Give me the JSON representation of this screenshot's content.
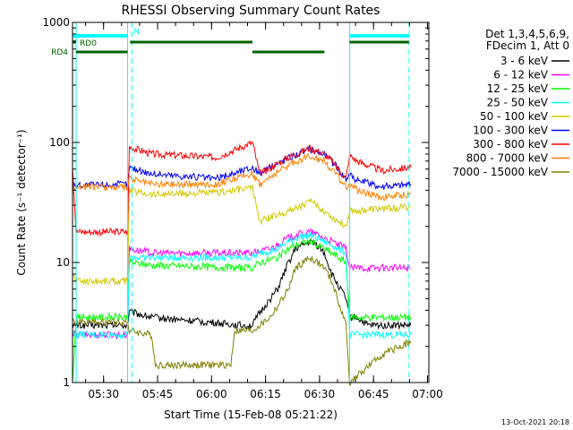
{
  "chart_data": {
    "type": "line",
    "title": "RHESSI Observing Summary Count Rates",
    "ylabel": "Count Rate (s⁻¹ detector⁻¹)",
    "xlabel": "Start Time (15-Feb-08 05:21:22)",
    "y_scale": "log",
    "ylim": [
      1,
      1000
    ],
    "y_ticks": [
      1,
      10,
      100,
      1000
    ],
    "x_range_minutes": [
      0,
      99
    ],
    "x_tick_labels": [
      "05:30",
      "05:45",
      "06:00",
      "06:15",
      "06:30",
      "06:45",
      "07:00"
    ],
    "x_tick_minutes": [
      8.63,
      23.63,
      38.63,
      53.63,
      68.63,
      83.63,
      98.63
    ],
    "grid": false,
    "legend_position": "right",
    "legend_header": [
      "Det 1,3,4,5,6,9,",
      "FDecim 1, Att 0"
    ],
    "series": [
      {
        "name": "3 - 6 keV",
        "color": "#000000",
        "x": [
          0,
          1,
          15.3,
          15.8,
          22,
          47,
          50,
          52,
          57,
          60,
          62,
          66,
          68,
          70,
          72,
          76,
          77,
          79,
          82,
          85,
          94
        ],
        "y": [
          3,
          3,
          3,
          3.9,
          3.5,
          3,
          3,
          3.8,
          6,
          10,
          13,
          15,
          14,
          12,
          8,
          5,
          3.5,
          3.5,
          3,
          3,
          3
        ]
      },
      {
        "name": "6 - 12 keV",
        "color": "#ff00ff",
        "x": [
          0,
          1,
          15.3,
          15.8,
          22,
          47,
          50,
          55,
          60,
          62,
          66,
          68,
          70,
          74,
          76,
          77,
          79,
          82,
          94
        ],
        "y": [
          2.5,
          2.5,
          2.5,
          13,
          12,
          12,
          12,
          13,
          16,
          17,
          18,
          17,
          16,
          14,
          13,
          9,
          9,
          9,
          9
        ]
      },
      {
        "name": "12 - 25 keV",
        "color": "#00ff00",
        "x": [
          0,
          1,
          15.3,
          15.8,
          22,
          47,
          50,
          52,
          57,
          60,
          62,
          66,
          68,
          70,
          72,
          76,
          77,
          79,
          82,
          94
        ],
        "y": [
          1,
          3.5,
          3.5,
          10,
          9.5,
          9,
          9,
          10,
          11,
          13,
          14,
          15,
          14,
          13,
          12,
          10,
          3.5,
          3.5,
          3.5,
          3.5
        ]
      },
      {
        "name": "25 - 50 keV",
        "color": "#00ffff",
        "x": [
          0,
          1,
          15.3,
          15.8,
          22,
          47,
          50,
          52,
          57,
          60,
          62,
          66,
          68,
          70,
          72,
          76,
          77,
          79,
          82,
          94
        ],
        "y": [
          2.5,
          2.5,
          2.5,
          11,
          11,
          11,
          11,
          12,
          13,
          15,
          16,
          17,
          16,
          15,
          14,
          12,
          2.5,
          2.5,
          2.5,
          2.5
        ]
      },
      {
        "name": "50 - 100 keV",
        "color": "#d2c800",
        "x": [
          0,
          1,
          15.3,
          15.8,
          22,
          40,
          50,
          52,
          60,
          66,
          70,
          72,
          76,
          77,
          79,
          86,
          94
        ],
        "y": [
          8,
          7,
          7,
          40,
          37,
          38,
          42,
          22,
          27,
          32,
          27,
          24,
          20,
          27,
          27,
          28,
          29
        ]
      },
      {
        "name": "100 - 300 keV",
        "color": "#0000ff",
        "x": [
          0,
          1,
          15.3,
          15.8,
          22,
          40,
          50,
          52,
          60,
          66,
          70,
          72,
          76,
          77,
          79,
          86,
          94
        ],
        "y": [
          43,
          44,
          45,
          62,
          55,
          50,
          62,
          55,
          75,
          88,
          80,
          70,
          50,
          55,
          48,
          43,
          45
        ]
      },
      {
        "name": "300 - 800 keV",
        "color": "#ff0000",
        "x": [
          0,
          1,
          15.3,
          15.8,
          22,
          40,
          50,
          52,
          60,
          66,
          70,
          72,
          76,
          77,
          79,
          86,
          94
        ],
        "y": [
          65,
          18,
          18,
          92,
          80,
          75,
          100,
          55,
          75,
          90,
          80,
          70,
          50,
          78,
          70,
          58,
          62
        ]
      },
      {
        "name": "800 - 7000 keV",
        "color": "#ff7f00",
        "x": [
          0,
          1,
          15.3,
          15.8,
          22,
          40,
          50,
          52,
          60,
          66,
          70,
          72,
          76,
          77,
          79,
          86,
          94
        ],
        "y": [
          40,
          43,
          42,
          50,
          45,
          45,
          55,
          45,
          65,
          78,
          70,
          60,
          43,
          45,
          40,
          35,
          37
        ]
      },
      {
        "name": "7000 - 15000 keV",
        "color": "#808000",
        "x": [
          0,
          1,
          15.3,
          15.8,
          22,
          23,
          44,
          45,
          50,
          55,
          60,
          62,
          66,
          68,
          70,
          72,
          76,
          77,
          86,
          94
        ],
        "y": [
          3.2,
          3.2,
          3.2,
          2.7,
          2.5,
          1.4,
          1.4,
          2.7,
          2.7,
          3.5,
          6,
          9,
          11,
          10,
          9,
          7,
          3,
          1,
          1.7,
          2.2
        ]
      }
    ],
    "flag_bars": {
      "labels": [
        "RD0",
        "RD4"
      ],
      "top_marker_label": "N",
      "top_colored_bar_color": "#00ffff",
      "green_bar_color": "#006400"
    },
    "vertical_markers_minutes": [
      1,
      15.3,
      16.5,
      77,
      93.5
    ]
  },
  "footer": {
    "date_stamp": "13-Oct-2021 20:18"
  }
}
